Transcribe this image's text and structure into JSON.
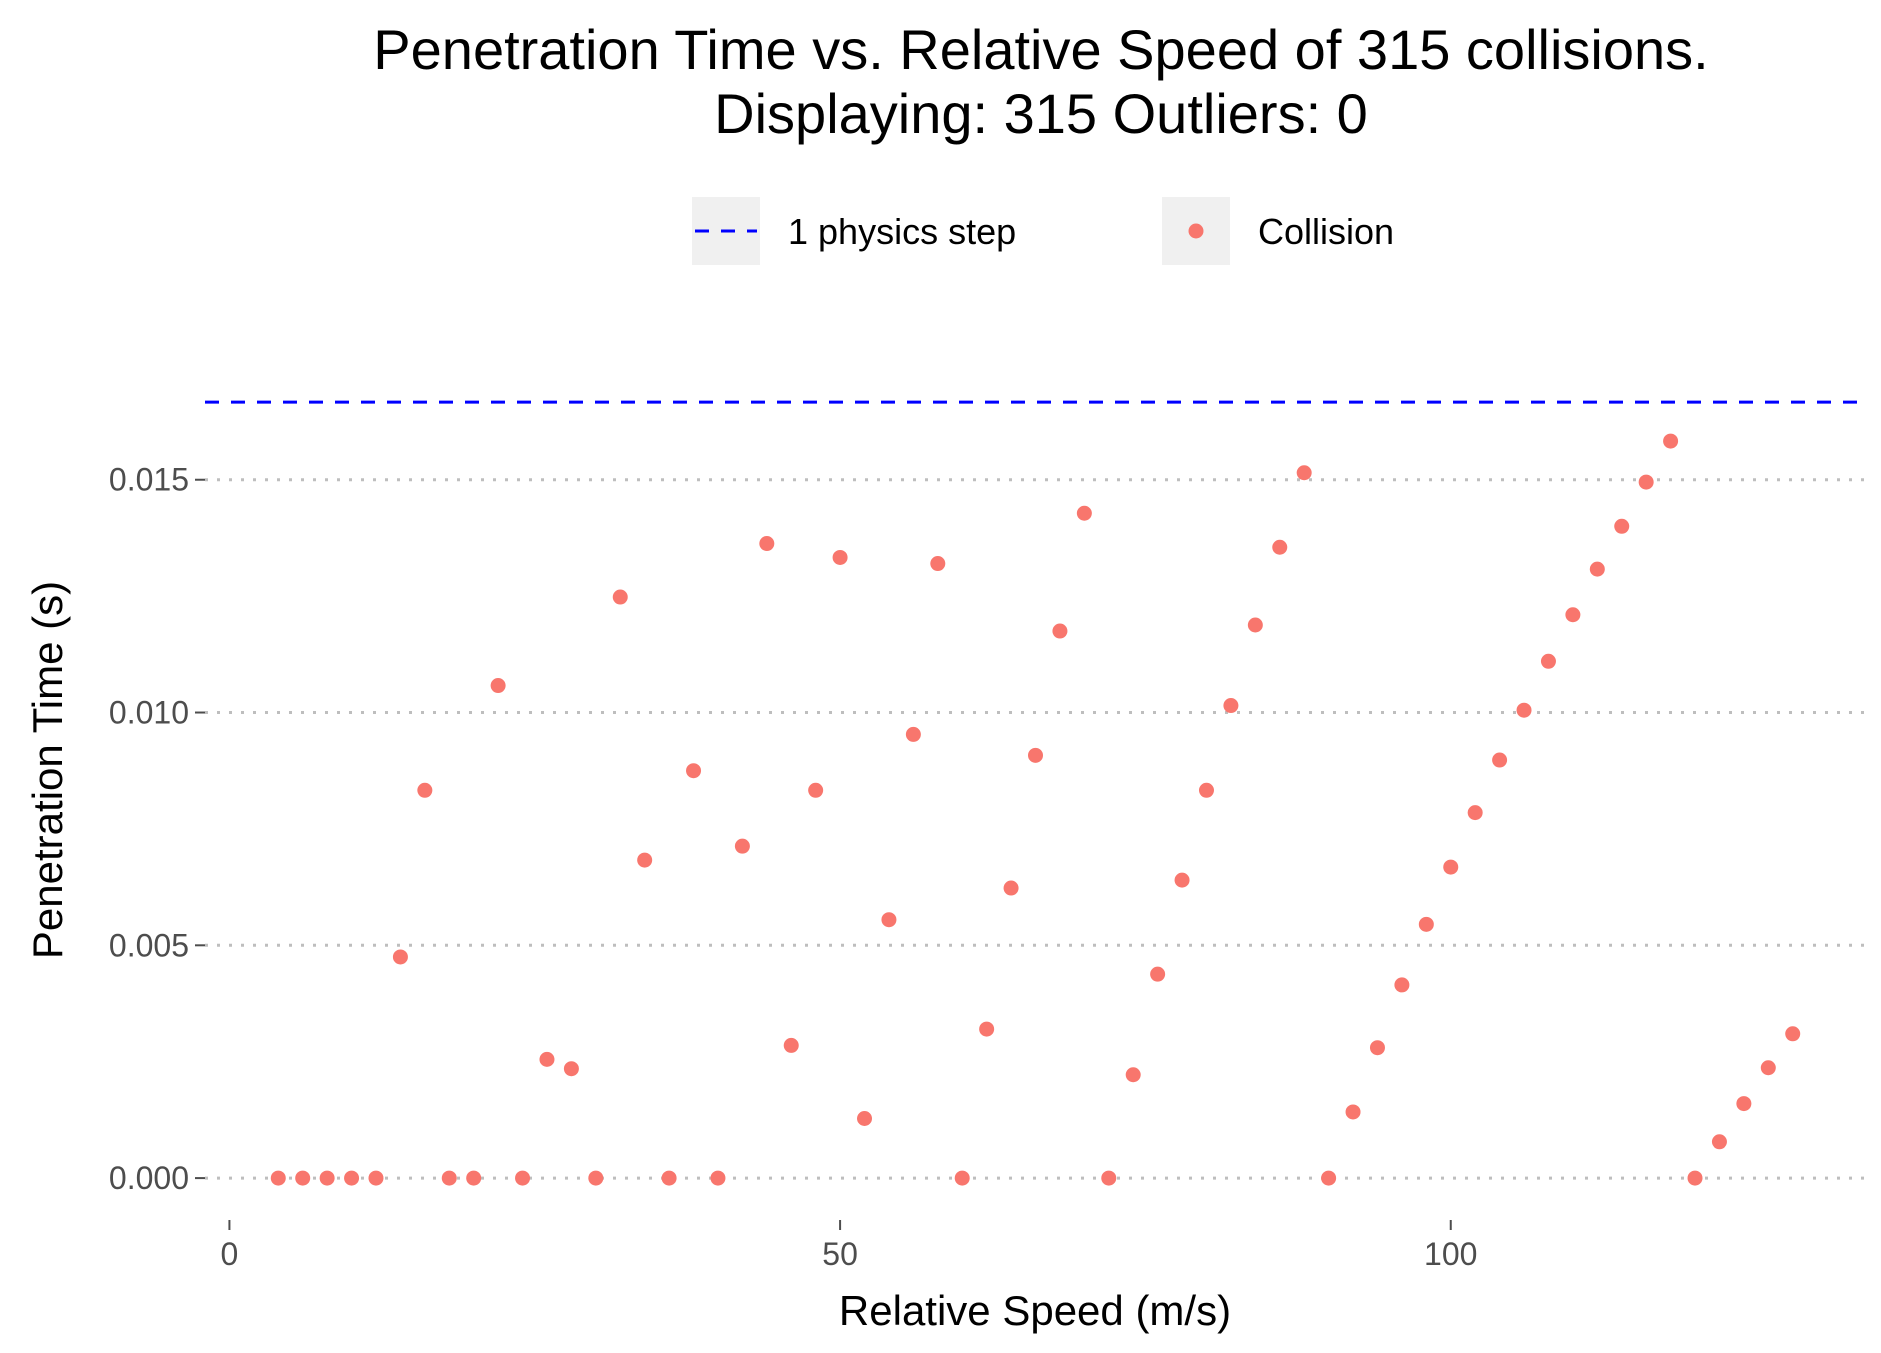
{
  "title_line1": "Penetration Time vs. Relative Speed of 315 collisions.",
  "title_line2": "Displaying: 315 Outliers: 0",
  "chart_data": {
    "type": "scatter",
    "xlabel": "Relative Speed (m/s)",
    "ylabel": "Penetration Time (s)",
    "xlim": [
      -2,
      134
    ],
    "ylim": [
      -0.0009,
      0.0174
    ],
    "x_ticks": [
      0,
      50,
      100
    ],
    "x_tick_labels": [
      "0",
      "50",
      "100"
    ],
    "y_ticks": [
      0.0,
      0.005,
      0.01,
      0.015
    ],
    "y_tick_labels": [
      "0.000",
      "0.005",
      "0.010",
      "0.015"
    ],
    "grid": "horizontal dotted",
    "legend_placement": "top",
    "legend": [
      {
        "label": "1 physics step",
        "kind": "dashed-line",
        "color": "#0000ff"
      },
      {
        "label": "Collision",
        "kind": "point",
        "color": "#f8766d"
      }
    ],
    "reference_line": {
      "name": "1 physics step",
      "y": 0.016667,
      "color": "#0000ff",
      "style": "dashed"
    },
    "series": [
      {
        "name": "Collision",
        "color": "#f8766d",
        "points": [
          [
            4,
            0.0
          ],
          [
            6,
            0.0
          ],
          [
            8,
            0.0
          ],
          [
            10,
            0.0
          ],
          [
            12,
            0.0
          ],
          [
            14,
            0.00475
          ],
          [
            16,
            0.00833
          ],
          [
            18,
            0.0
          ],
          [
            20,
            0.0
          ],
          [
            22,
            0.01058
          ],
          [
            24,
            0.0
          ],
          [
            26,
            0.00255
          ],
          [
            28,
            0.00235
          ],
          [
            30,
            0.0
          ],
          [
            32,
            0.01248
          ],
          [
            34,
            0.00683
          ],
          [
            36,
            0.0
          ],
          [
            38,
            0.00875
          ],
          [
            40,
            0.0
          ],
          [
            42,
            0.00713
          ],
          [
            44,
            0.01363
          ],
          [
            46,
            0.00285
          ],
          [
            48,
            0.00833
          ],
          [
            50,
            0.01333
          ],
          [
            52,
            0.00128
          ],
          [
            54,
            0.00555
          ],
          [
            56,
            0.00953
          ],
          [
            58,
            0.0132
          ],
          [
            60,
            0.0
          ],
          [
            62,
            0.0032
          ],
          [
            64,
            0.00623
          ],
          [
            66,
            0.00908
          ],
          [
            68,
            0.01175
          ],
          [
            70,
            0.01428
          ],
          [
            72,
            0.0
          ],
          [
            74,
            0.00222
          ],
          [
            76,
            0.00438
          ],
          [
            78,
            0.0064
          ],
          [
            80,
            0.00833
          ],
          [
            82,
            0.01015
          ],
          [
            84,
            0.01188
          ],
          [
            86,
            0.01355
          ],
          [
            88,
            0.01515
          ],
          [
            90,
            0.0
          ],
          [
            92,
            0.00142
          ],
          [
            94,
            0.0028
          ],
          [
            96,
            0.00415
          ],
          [
            98,
            0.00545
          ],
          [
            100,
            0.00668
          ],
          [
            102,
            0.00785
          ],
          [
            104,
            0.00898
          ],
          [
            106,
            0.01005
          ],
          [
            108,
            0.0111
          ],
          [
            110,
            0.0121
          ],
          [
            112,
            0.01308
          ],
          [
            114,
            0.014
          ],
          [
            116,
            0.01495
          ],
          [
            118,
            0.01583
          ],
          [
            120,
            0.0
          ],
          [
            122,
            0.00078
          ],
          [
            124,
            0.0016
          ],
          [
            126,
            0.00237
          ],
          [
            128,
            0.0031
          ]
        ]
      }
    ]
  }
}
